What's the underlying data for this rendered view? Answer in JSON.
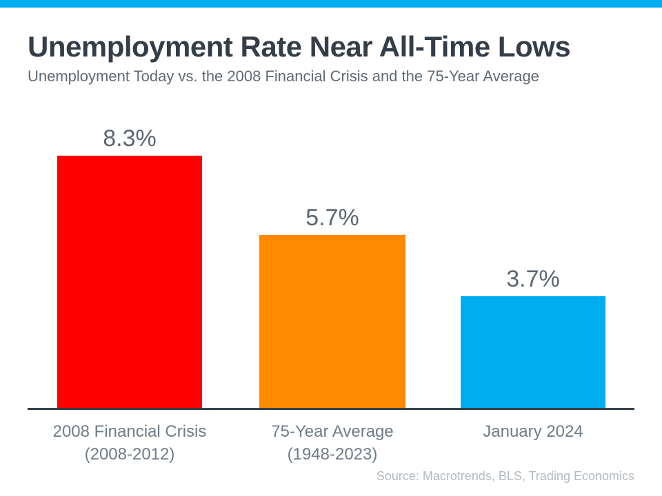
{
  "page": {
    "title": "Unemployment Rate Near All-Time Lows",
    "subtitle": "Unemployment Today vs. the 2008 Financial Crisis and the 75-Year Average",
    "source": "Source: Macrotrends, BLS, Trading Economics"
  },
  "colors": {
    "accent_strip": "#00AEEF",
    "title_text": "#333E48",
    "subtitle_text": "#5D6A76",
    "value_text": "#5A6673",
    "category_text": "#6E7C8A",
    "axis_line": "#333E48",
    "source_text": "#B3BAC1"
  },
  "chart_data": {
    "type": "bar",
    "title": "Unemployment Rate Near All-Time Lows",
    "subtitle": "Unemployment Today vs. the 2008 Financial Crisis and the 75-Year Average",
    "categories": [
      "2008 Financial Crisis (2008-2012)",
      "75-Year Average (1948-2023)",
      "January 2024"
    ],
    "values": [
      8.3,
      5.7,
      3.7
    ],
    "value_labels": [
      "8.3%",
      "5.7%",
      "3.7%"
    ],
    "bar_colors": [
      "#FF0000",
      "#FF8A00",
      "#00AEEF"
    ],
    "ylim": [
      0,
      9.8
    ],
    "xlabel": "",
    "ylabel": "",
    "grid": false,
    "legend": false,
    "annotations": "values shown above each bar",
    "bars": [
      {
        "value": 8.3,
        "value_label": "8.3%",
        "label_line1": "2008 Financial Crisis",
        "label_line2": "(2008-2012)",
        "color": "#FF0000"
      },
      {
        "value": 5.7,
        "value_label": "5.7%",
        "label_line1": "75-Year Average",
        "label_line2": "(1948-2023)",
        "color": "#FF8A00"
      },
      {
        "value": 3.7,
        "value_label": "3.7%",
        "label_line1": "January 2024",
        "label_line2": "",
        "color": "#00AEEF"
      }
    ]
  }
}
